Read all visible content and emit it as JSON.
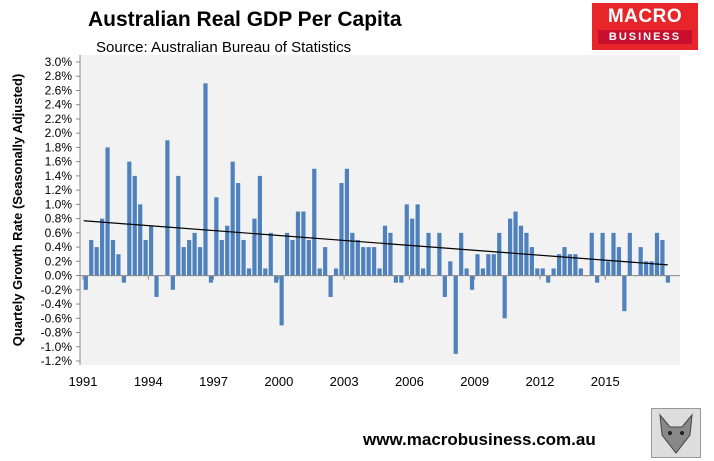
{
  "header": {
    "title": "Australian Real GDP Per Capita",
    "subtitle": "Source: Australian Bureau of Statistics"
  },
  "logo": {
    "line1": "MACRO",
    "line2": "BUSINESS"
  },
  "footer": {
    "url": "www.macrobusiness.com.au"
  },
  "colors": {
    "bar": "#4f81bd",
    "trend": "#000000",
    "plot_bg": "#f2f2f2",
    "logo": "#e8262a"
  },
  "chart_data": {
    "type": "bar",
    "title": "Australian Real GDP Per Capita",
    "xlabel": "",
    "ylabel": "Quartely Growth Rate (Seasonally Adjusted)",
    "ylim": [
      -1.2,
      3.0
    ],
    "y_ticks": [
      "3.0%",
      "2.8%",
      "2.6%",
      "2.4%",
      "2.2%",
      "2.0%",
      "1.8%",
      "1.6%",
      "1.4%",
      "1.2%",
      "1.0%",
      "0.8%",
      "0.6%",
      "0.4%",
      "0.2%",
      "0.0%",
      "-0.2%",
      "-0.4%",
      "-0.6%",
      "-0.8%",
      "-1.0%",
      "-1.2%"
    ],
    "x_ticks": [
      "1991",
      "1994",
      "1997",
      "2000",
      "2003",
      "2006",
      "2009",
      "2012",
      "2015"
    ],
    "grid": false,
    "start": "1991Q1",
    "frequency": "quarterly",
    "series": [
      {
        "values": [
          -0.2,
          0.5,
          0.4,
          0.8,
          1.8,
          0.5,
          0.3,
          -0.1,
          1.6,
          1.4,
          1.0,
          0.5,
          0.7,
          -0.3,
          0,
          1.9,
          -0.2,
          1.4,
          0.4,
          0.5,
          0.6,
          0.4,
          2.7,
          -0.1,
          1.1,
          0.5,
          0.7,
          1.6,
          1.3,
          0.5,
          0.1,
          0.8,
          1.4,
          0.1,
          0.6,
          -0.1,
          -0.7,
          0.6,
          0.5,
          0.9,
          0.9,
          0.5,
          1.5,
          0.1,
          0.4,
          -0.3,
          0.1,
          1.3,
          1.5,
          0.6,
          0.5,
          0.4,
          0.4,
          0.4,
          0.1,
          0.7,
          0.6,
          -0.1,
          -0.1,
          1.0,
          0.8,
          1.0,
          0.1,
          0.6,
          0,
          0.6,
          -0.3,
          0.2,
          -1.1,
          0.6,
          0.1,
          -0.2,
          0.3,
          0.1,
          0.3,
          0.3,
          0.6,
          -0.6,
          0.8,
          0.9,
          0.7,
          0.6,
          0.4,
          0.1,
          0.1,
          -0.1,
          0.1,
          0.3,
          0.4,
          0.3,
          0.3,
          0.1,
          0,
          0.6,
          -0.1,
          0.6,
          0.2,
          0.6,
          0.4,
          -0.5,
          0.6,
          0,
          0.4,
          0.2,
          0.2,
          0.6,
          0.5,
          -0.1
        ]
      }
    ],
    "trendline": {
      "type": "linear",
      "start": 0.77,
      "end": 0.15
    }
  }
}
